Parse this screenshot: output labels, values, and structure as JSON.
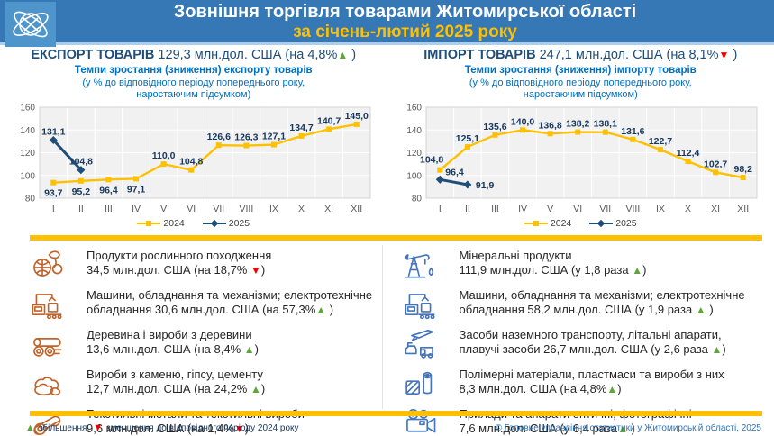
{
  "symbols": {
    "up": "▲",
    "down": "▼"
  },
  "colors": {
    "banner_blue": "#3578b5",
    "logo_blue": "#4e95cb",
    "accent_yellow": "#ffc000",
    "navy": "#1f4e79",
    "bright_blue": "#0070c0",
    "trend_green": "#5ea639",
    "trend_red": "#f00000",
    "series_2024": "#ffc000",
    "series_2025": "#1f4e79",
    "export_icons": "#c0632b",
    "import_icons": "#4575ba"
  },
  "header": {
    "title": "Зовнішня торгівля товарами Житомирської області",
    "subtitle": "за січень-лютий 2025 року",
    "logo_icon": "globe-orbit-icon"
  },
  "export": {
    "heading_bold": "ЕКСПОРТ ТОВАРІВ",
    "heading_value": " 129,3 млн.дол. США (на 4,8%",
    "heading_trend": "up",
    "heading_suffix": " )",
    "chart_title": "Темпи зростання (зниження) експорту товарів",
    "chart_note1": "(у % до відповідного періоду попереднього року,",
    "chart_note2": "наростаючим підсумком)"
  },
  "import": {
    "heading_bold": "ІМПОРТ ТОВАРІВ",
    "heading_value": " 247,1 млн.дол. США (на 8,1%",
    "heading_trend": "down",
    "heading_suffix": " )",
    "chart_title": "Темпи зростання (зниження) імпорту товарів",
    "chart_note1": "(у % до відповідного періоду попереднього року,",
    "chart_note2": "наростаючим підсумком)"
  },
  "chart_data": [
    {
      "type": "line",
      "title": "Темпи зростання (зниження) експорту товарів",
      "categories": [
        "I",
        "II",
        "III",
        "IV",
        "V",
        "VI",
        "VII",
        "VIII",
        "IX",
        "X",
        "XI",
        "XII"
      ],
      "ylim": [
        80,
        160
      ],
      "yticks": [
        80,
        100,
        120,
        140,
        160
      ],
      "grid": true,
      "legend_position": "bottom",
      "series": [
        {
          "name": "2024",
          "color": "#ffc000",
          "marker": "square",
          "values": [
            93.7,
            95.2,
            96.4,
            97.1,
            110.0,
            104.8,
            126.6,
            126.3,
            127.1,
            134.7,
            140.7,
            145.0
          ],
          "labels": [
            "93,7",
            "95,2",
            "96,4",
            "97,1",
            "110,0",
            "104,8",
            "126,6",
            "126,3",
            "127,1",
            "134,7",
            "140,7",
            "145,0"
          ],
          "label_pos": [
            "b",
            "b",
            "b",
            "b",
            "a",
            "a",
            "a",
            "a",
            "a",
            "a",
            "a",
            "a"
          ]
        },
        {
          "name": "2025",
          "color": "#1f4e79",
          "marker": "diamond",
          "values": [
            131.1,
            104.8
          ],
          "labels": [
            "131,1",
            "104,8"
          ],
          "label_pos": [
            "a",
            "a"
          ]
        }
      ]
    },
    {
      "type": "line",
      "title": "Темпи зростання (зниження) імпорту товарів",
      "categories": [
        "I",
        "II",
        "III",
        "IV",
        "V",
        "VI",
        "VII",
        "VIII",
        "IX",
        "X",
        "XI",
        "XII"
      ],
      "ylim": [
        80,
        160
      ],
      "yticks": [
        80,
        100,
        120,
        140,
        160
      ],
      "grid": true,
      "legend_position": "bottom",
      "series": [
        {
          "name": "2024",
          "color": "#ffc000",
          "marker": "square",
          "values": [
            104.8,
            125.1,
            135.6,
            140.0,
            136.8,
            138.2,
            138.1,
            131.6,
            122.7,
            112.4,
            102.7,
            98.2
          ],
          "labels": [
            "104,8",
            "125,1",
            "135,6",
            "140,0",
            "136,8",
            "138,2",
            "138,1",
            "131,6",
            "122,7",
            "112,4",
            "102,7",
            "98,2"
          ],
          "label_pos": [
            "al",
            "a",
            "a",
            "a",
            "a",
            "a",
            "a",
            "a",
            "a",
            "a",
            "a",
            "a"
          ]
        },
        {
          "name": "2025",
          "color": "#1f4e79",
          "marker": "diamond",
          "values": [
            96.4,
            91.9
          ],
          "labels": [
            "96,4",
            "91,9"
          ],
          "label_pos": [
            "ar",
            "r"
          ]
        }
      ]
    }
  ],
  "export_products": [
    {
      "icon": "plant-products-icon",
      "line1": "Продукти рослинного походження",
      "line2": "34,5 млн.дол. США (на 18,7% ",
      "trend": "down",
      "suffix": ")"
    },
    {
      "icon": "machinery-icon",
      "line1": "Машини, обладнання та механізми; електротехнічне",
      "line2": "обладнання 30,6 млн.дол. США (на 57,3%",
      "trend": "up",
      "suffix": " )"
    },
    {
      "icon": "wood-icon",
      "line1": "Деревина і вироби з деревини",
      "line2": "13,6 млн.дол. США (на 8,4% ",
      "trend": "up",
      "suffix": ")"
    },
    {
      "icon": "stone-icon",
      "line1": "Вироби з каменю, гіпсу, цементу",
      "line2": "12,7 млн.дол. США (на 24,2% ",
      "trend": "up",
      "suffix": ")"
    },
    {
      "icon": "textile-icon",
      "line1": "Текстильні метали та текстильні вироби",
      "line2": "9,6 млн.дол. США (на 1,4%",
      "trend": "down",
      "suffix": ")"
    }
  ],
  "import_products": [
    {
      "icon": "mineral-pump-icon",
      "line1": "Мінеральні продукти",
      "line2": "111,9 млн.дол. США (у 1,8 раза ",
      "trend": "up",
      "suffix": ")"
    },
    {
      "icon": "machinery-icon",
      "line1": "Машини, обладнання та механізми; електротехнічне",
      "line2": "обладнання 58,2 млн.дол. США (у 1,9 раза ",
      "trend": "up",
      "suffix": " )"
    },
    {
      "icon": "transport-icon",
      "line1": "Засоби наземного транспорту, літальні апарати,",
      "line2": "плавучі засоби 26,7 млн.дол. США (у 2,6 раза ",
      "trend": "up",
      "suffix": ")"
    },
    {
      "icon": "polymer-icon",
      "line1": "Полімерні матеріали, пластмаси та вироби з них",
      "line2": "8,3 млн.дол. США (на 4,8%",
      "trend": "up",
      "suffix": ")"
    },
    {
      "icon": "optical-camera-icon",
      "line1": "Прилади та апарати оптичні, фотографічні",
      "line2": "7,6 млн.дол. США (у 6,4 раза",
      "trend": "up",
      "suffix": " )"
    }
  ],
  "footer": {
    "legend_up": "збільшення,",
    "legend_down": "зменшення до відповідного періоду 2024 року",
    "copyright": "© Головне управління статистики у Житомирській області, 2025"
  }
}
